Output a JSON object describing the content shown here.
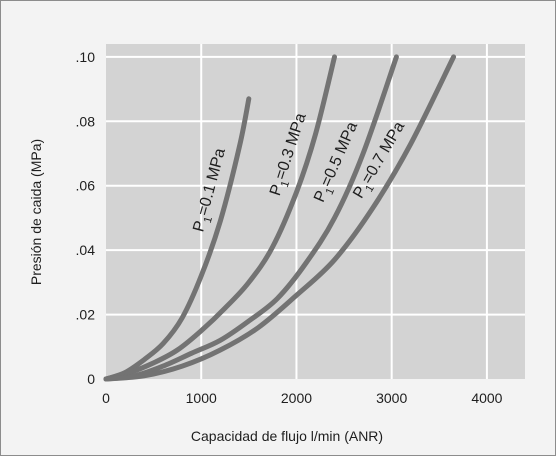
{
  "chart_data": {
    "type": "line",
    "title": "",
    "xlabel": "Capacidad de flujo l/min (ANR)",
    "ylabel": "Presión de caida (MPa)",
    "xlim": [
      0,
      4400
    ],
    "ylim": [
      0,
      0.104
    ],
    "x_ticks": [
      0,
      1000,
      2000,
      3000,
      4000
    ],
    "x_tick_labels": [
      "0",
      "1000",
      "2000",
      "3000",
      "4000"
    ],
    "y_ticks": [
      0,
      0.02,
      0.04,
      0.06,
      0.08,
      0.1
    ],
    "y_tick_labels": [
      "0",
      ".02",
      ".04",
      ".06",
      ".08",
      ".10"
    ],
    "grid": true,
    "colors": {
      "plot_background": "#d3d3d3",
      "grid": "#ffffff",
      "curves": "#737373",
      "frame": "#8c8c8c",
      "panel": "#f3f3f3"
    },
    "series": [
      {
        "label_main": "P",
        "label_sub": "1",
        "label_rest": "=0.1 MPa",
        "x": [
          0,
          200,
          400,
          600,
          800,
          1000,
          1200,
          1400,
          1500
        ],
        "y": [
          0.0,
          0.002,
          0.006,
          0.011,
          0.019,
          0.032,
          0.049,
          0.072,
          0.087
        ]
      },
      {
        "label_main": "P",
        "label_sub": "1",
        "label_rest": "=0.3 MPa",
        "x": [
          0,
          250,
          500,
          750,
          1000,
          1250,
          1500,
          1750,
          2000,
          2200,
          2400
        ],
        "y": [
          0.0,
          0.002,
          0.005,
          0.009,
          0.015,
          0.022,
          0.03,
          0.041,
          0.058,
          0.076,
          0.1
        ]
      },
      {
        "label_main": "P",
        "label_sub": "1",
        "label_rest": "=0.5 MPa",
        "x": [
          0,
          300,
          600,
          900,
          1200,
          1500,
          1800,
          2100,
          2400,
          2700,
          3050
        ],
        "y": [
          0.0,
          0.001,
          0.004,
          0.008,
          0.012,
          0.018,
          0.025,
          0.036,
          0.05,
          0.07,
          0.1
        ]
      },
      {
        "label_main": "P",
        "label_sub": "1",
        "label_rest": "=0.7 MPa",
        "x": [
          0,
          400,
          800,
          1200,
          1600,
          2000,
          2400,
          2800,
          3200,
          3650
        ],
        "y": [
          0.0,
          0.001,
          0.004,
          0.009,
          0.016,
          0.026,
          0.037,
          0.053,
          0.073,
          0.1
        ]
      }
    ]
  }
}
